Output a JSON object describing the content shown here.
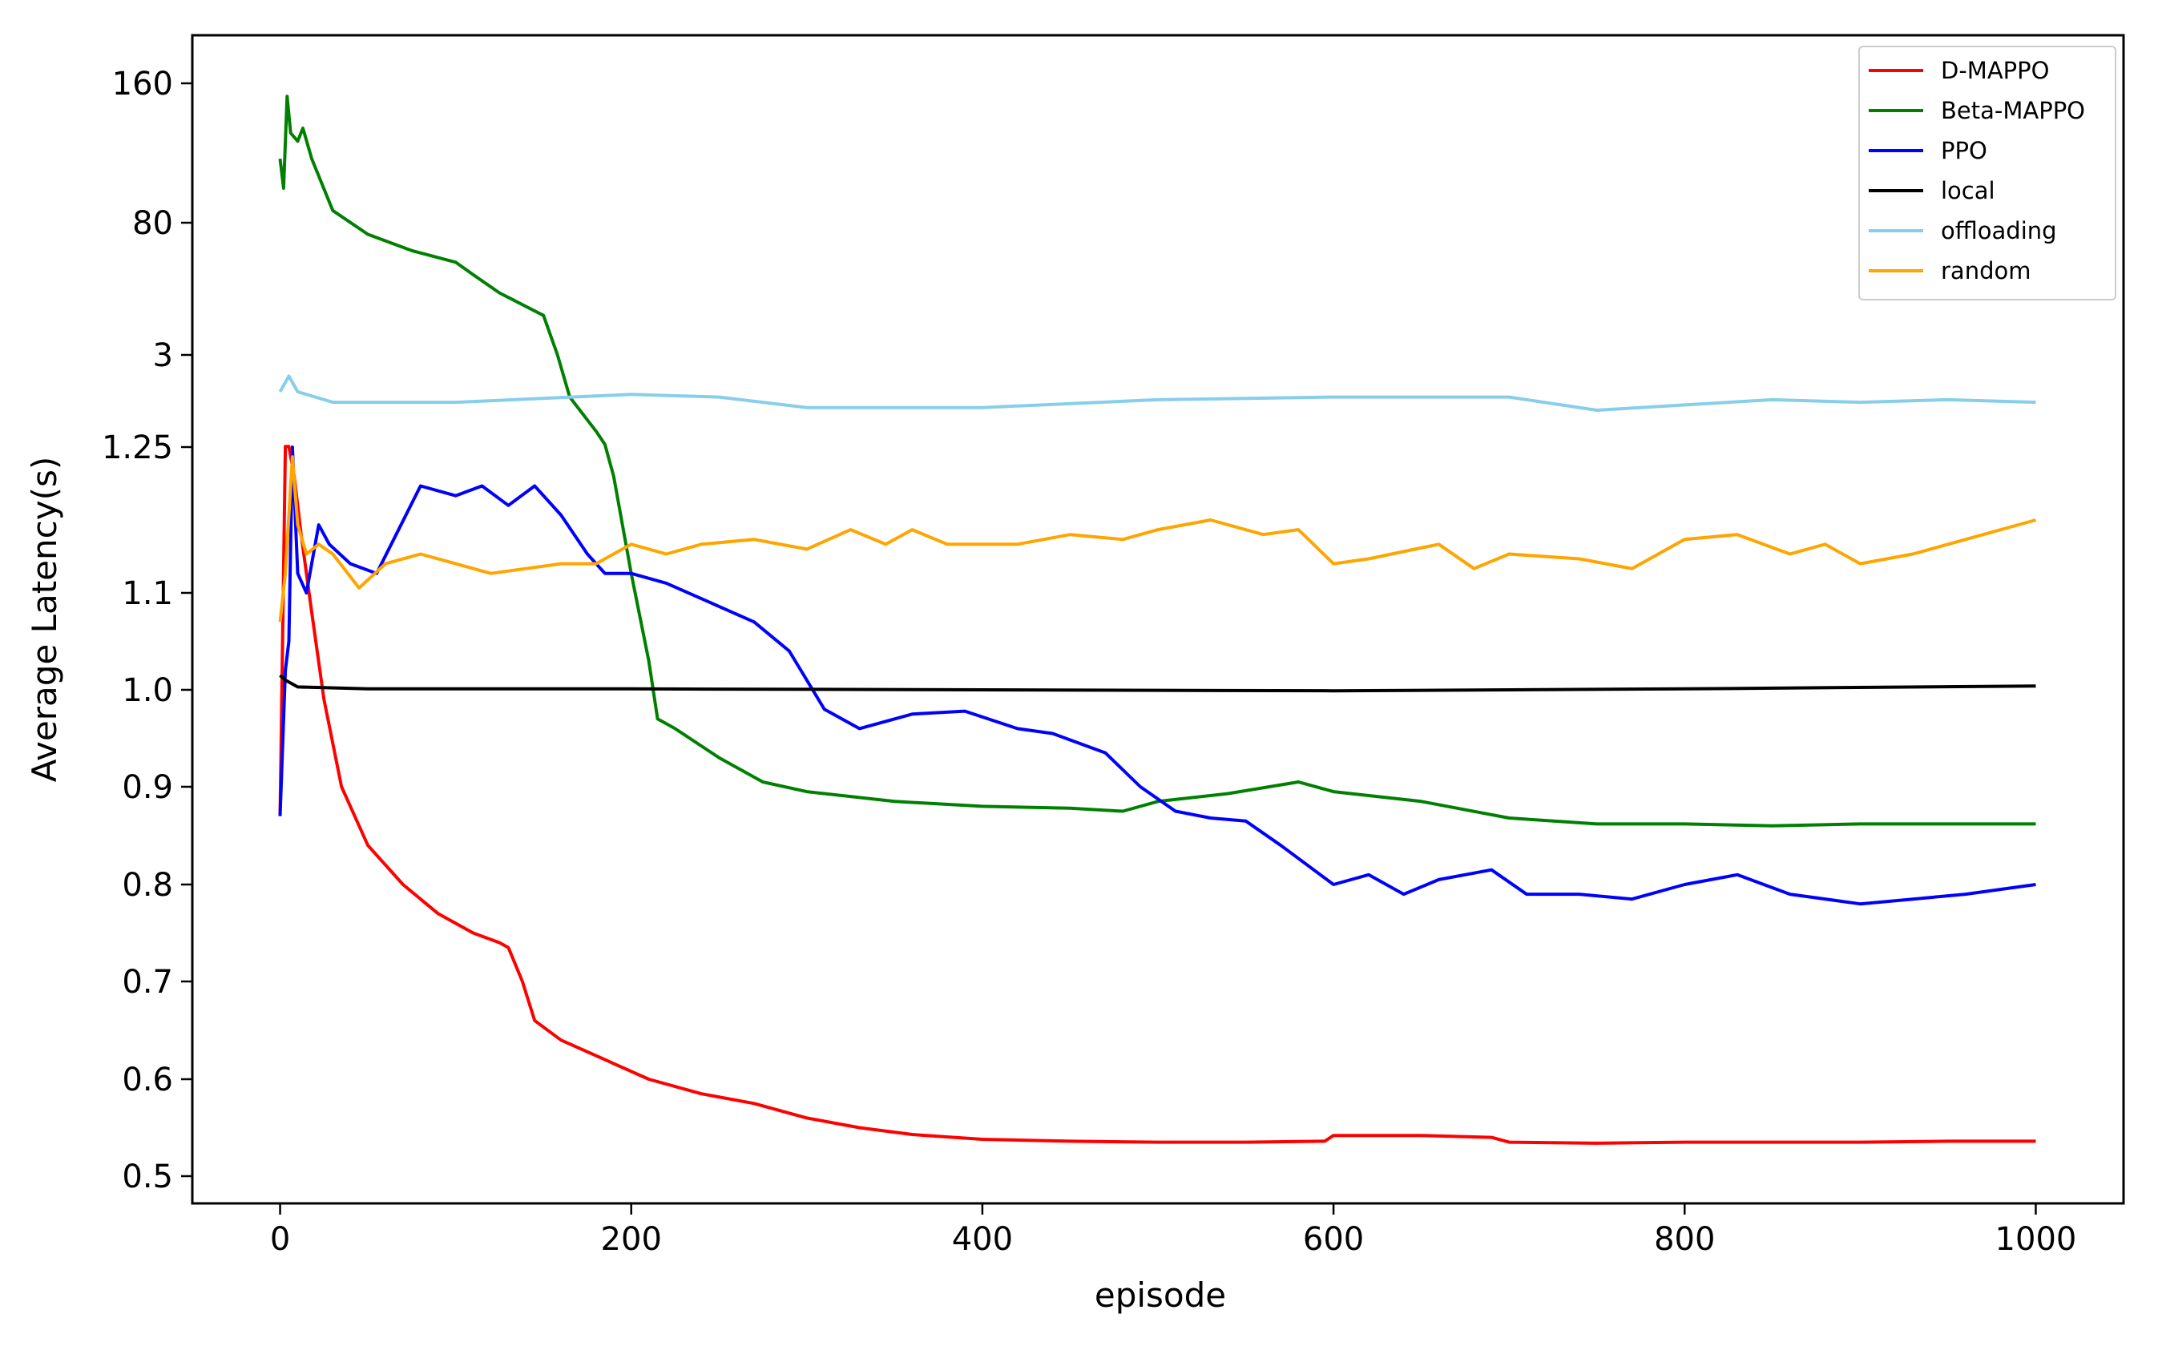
{
  "chart_data": {
    "type": "line",
    "xlabel": "episode",
    "ylabel": "Average Latency(s)",
    "xlim": [
      -50,
      1050
    ],
    "x_ticks": [
      0,
      200,
      400,
      600,
      800,
      1000
    ],
    "y_axis_note": "non-linear (piecewise) scale; tick labels as printed",
    "y_ticks": [
      "0.5",
      "0.6",
      "0.7",
      "0.8",
      "0.9",
      "1.0",
      "1.1",
      "1.25",
      "3",
      "80",
      "160"
    ],
    "legend_position": "top-right",
    "grid": false,
    "series": [
      {
        "name": "D-MAPPO",
        "color": "#ff0000",
        "points": [
          [
            0,
            0.87
          ],
          [
            3,
            1.26
          ],
          [
            5,
            1.26
          ],
          [
            8,
            1.22
          ],
          [
            12,
            1.16
          ],
          [
            18,
            1.08
          ],
          [
            25,
            0.99
          ],
          [
            35,
            0.9
          ],
          [
            50,
            0.84
          ],
          [
            70,
            0.8
          ],
          [
            90,
            0.77
          ],
          [
            110,
            0.75
          ],
          [
            125,
            0.74
          ],
          [
            130,
            0.735
          ],
          [
            138,
            0.7
          ],
          [
            145,
            0.66
          ],
          [
            160,
            0.64
          ],
          [
            185,
            0.62
          ],
          [
            210,
            0.6
          ],
          [
            240,
            0.585
          ],
          [
            270,
            0.575
          ],
          [
            300,
            0.56
          ],
          [
            330,
            0.55
          ],
          [
            360,
            0.543
          ],
          [
            400,
            0.538
          ],
          [
            450,
            0.536
          ],
          [
            500,
            0.535
          ],
          [
            550,
            0.535
          ],
          [
            595,
            0.536
          ],
          [
            600,
            0.542
          ],
          [
            650,
            0.542
          ],
          [
            690,
            0.54
          ],
          [
            700,
            0.535
          ],
          [
            750,
            0.534
          ],
          [
            800,
            0.535
          ],
          [
            850,
            0.535
          ],
          [
            900,
            0.535
          ],
          [
            950,
            0.536
          ],
          [
            1000,
            0.536
          ]
        ]
      },
      {
        "name": "Beta-MAPPO",
        "color": "#008000",
        "points": [
          [
            0,
            110
          ],
          [
            2,
            95
          ],
          [
            4,
            150
          ],
          [
            6,
            125
          ],
          [
            10,
            120
          ],
          [
            13,
            128
          ],
          [
            18,
            110
          ],
          [
            30,
            85
          ],
          [
            50,
            60
          ],
          [
            75,
            40
          ],
          [
            100,
            30
          ],
          [
            110,
            22
          ],
          [
            125,
            14
          ],
          [
            140,
            10
          ],
          [
            150,
            8
          ],
          [
            158,
            3
          ],
          [
            165,
            2.2
          ],
          [
            180,
            1.55
          ],
          [
            185,
            1.3
          ],
          [
            190,
            1.22
          ],
          [
            200,
            1.12
          ],
          [
            210,
            1.03
          ],
          [
            215,
            0.97
          ],
          [
            225,
            0.96
          ],
          [
            250,
            0.93
          ],
          [
            275,
            0.905
          ],
          [
            300,
            0.895
          ],
          [
            350,
            0.885
          ],
          [
            400,
            0.88
          ],
          [
            450,
            0.878
          ],
          [
            480,
            0.875
          ],
          [
            500,
            0.885
          ],
          [
            540,
            0.893
          ],
          [
            580,
            0.905
          ],
          [
            600,
            0.895
          ],
          [
            650,
            0.885
          ],
          [
            700,
            0.868
          ],
          [
            750,
            0.862
          ],
          [
            800,
            0.862
          ],
          [
            850,
            0.86
          ],
          [
            900,
            0.862
          ],
          [
            950,
            0.862
          ],
          [
            1000,
            0.862
          ]
        ]
      },
      {
        "name": "PPO",
        "color": "#0000ff",
        "points": [
          [
            0,
            0.87
          ],
          [
            3,
            1.02
          ],
          [
            5,
            1.05
          ],
          [
            7,
            1.25
          ],
          [
            10,
            1.12
          ],
          [
            15,
            1.1
          ],
          [
            22,
            1.17
          ],
          [
            28,
            1.15
          ],
          [
            40,
            1.13
          ],
          [
            55,
            1.12
          ],
          [
            80,
            1.21
          ],
          [
            100,
            1.2
          ],
          [
            115,
            1.21
          ],
          [
            130,
            1.19
          ],
          [
            145,
            1.21
          ],
          [
            160,
            1.18
          ],
          [
            175,
            1.14
          ],
          [
            185,
            1.12
          ],
          [
            200,
            1.12
          ],
          [
            220,
            1.11
          ],
          [
            245,
            1.09
          ],
          [
            270,
            1.07
          ],
          [
            290,
            1.04
          ],
          [
            310,
            0.98
          ],
          [
            330,
            0.96
          ],
          [
            360,
            0.975
          ],
          [
            390,
            0.978
          ],
          [
            420,
            0.96
          ],
          [
            440,
            0.955
          ],
          [
            470,
            0.935
          ],
          [
            490,
            0.9
          ],
          [
            510,
            0.875
          ],
          [
            530,
            0.868
          ],
          [
            550,
            0.865
          ],
          [
            570,
            0.84
          ],
          [
            600,
            0.8
          ],
          [
            620,
            0.81
          ],
          [
            640,
            0.79
          ],
          [
            660,
            0.805
          ],
          [
            690,
            0.815
          ],
          [
            710,
            0.79
          ],
          [
            740,
            0.79
          ],
          [
            770,
            0.785
          ],
          [
            800,
            0.8
          ],
          [
            830,
            0.81
          ],
          [
            860,
            0.79
          ],
          [
            900,
            0.78
          ],
          [
            930,
            0.785
          ],
          [
            960,
            0.79
          ],
          [
            1000,
            0.8
          ]
        ]
      },
      {
        "name": "local",
        "color": "#000000",
        "points": [
          [
            0,
            1.015
          ],
          [
            3,
            1.01
          ],
          [
            10,
            1.003
          ],
          [
            50,
            1.001
          ],
          [
            200,
            1.001
          ],
          [
            400,
            1.0
          ],
          [
            600,
            0.999
          ],
          [
            800,
            1.001
          ],
          [
            1000,
            1.004
          ]
        ]
      },
      {
        "name": "offloading",
        "color": "#87ceeb",
        "points": [
          [
            0,
            2.3
          ],
          [
            5,
            2.6
          ],
          [
            10,
            2.3
          ],
          [
            30,
            2.1
          ],
          [
            100,
            2.1
          ],
          [
            200,
            2.25
          ],
          [
            250,
            2.2
          ],
          [
            300,
            2.0
          ],
          [
            400,
            2.0
          ],
          [
            500,
            2.15
          ],
          [
            600,
            2.2
          ],
          [
            700,
            2.2
          ],
          [
            750,
            1.95
          ],
          [
            800,
            2.05
          ],
          [
            850,
            2.15
          ],
          [
            900,
            2.1
          ],
          [
            950,
            2.15
          ],
          [
            1000,
            2.1
          ]
        ]
      },
      {
        "name": "random",
        "color": "#ffa500",
        "points": [
          [
            0,
            1.07
          ],
          [
            3,
            1.12
          ],
          [
            7,
            1.24
          ],
          [
            10,
            1.17
          ],
          [
            15,
            1.14
          ],
          [
            22,
            1.15
          ],
          [
            30,
            1.14
          ],
          [
            45,
            1.105
          ],
          [
            60,
            1.13
          ],
          [
            80,
            1.14
          ],
          [
            100,
            1.13
          ],
          [
            120,
            1.12
          ],
          [
            140,
            1.125
          ],
          [
            160,
            1.13
          ],
          [
            180,
            1.13
          ],
          [
            200,
            1.15
          ],
          [
            220,
            1.14
          ],
          [
            240,
            1.15
          ],
          [
            270,
            1.155
          ],
          [
            300,
            1.145
          ],
          [
            325,
            1.165
          ],
          [
            345,
            1.15
          ],
          [
            360,
            1.165
          ],
          [
            380,
            1.15
          ],
          [
            420,
            1.15
          ],
          [
            450,
            1.16
          ],
          [
            480,
            1.155
          ],
          [
            500,
            1.165
          ],
          [
            530,
            1.175
          ],
          [
            560,
            1.16
          ],
          [
            580,
            1.165
          ],
          [
            600,
            1.13
          ],
          [
            620,
            1.135
          ],
          [
            660,
            1.15
          ],
          [
            680,
            1.125
          ],
          [
            700,
            1.14
          ],
          [
            740,
            1.135
          ],
          [
            770,
            1.125
          ],
          [
            800,
            1.155
          ],
          [
            830,
            1.16
          ],
          [
            860,
            1.14
          ],
          [
            880,
            1.15
          ],
          [
            900,
            1.13
          ],
          [
            930,
            1.14
          ],
          [
            960,
            1.155
          ],
          [
            1000,
            1.175
          ]
        ]
      }
    ]
  }
}
